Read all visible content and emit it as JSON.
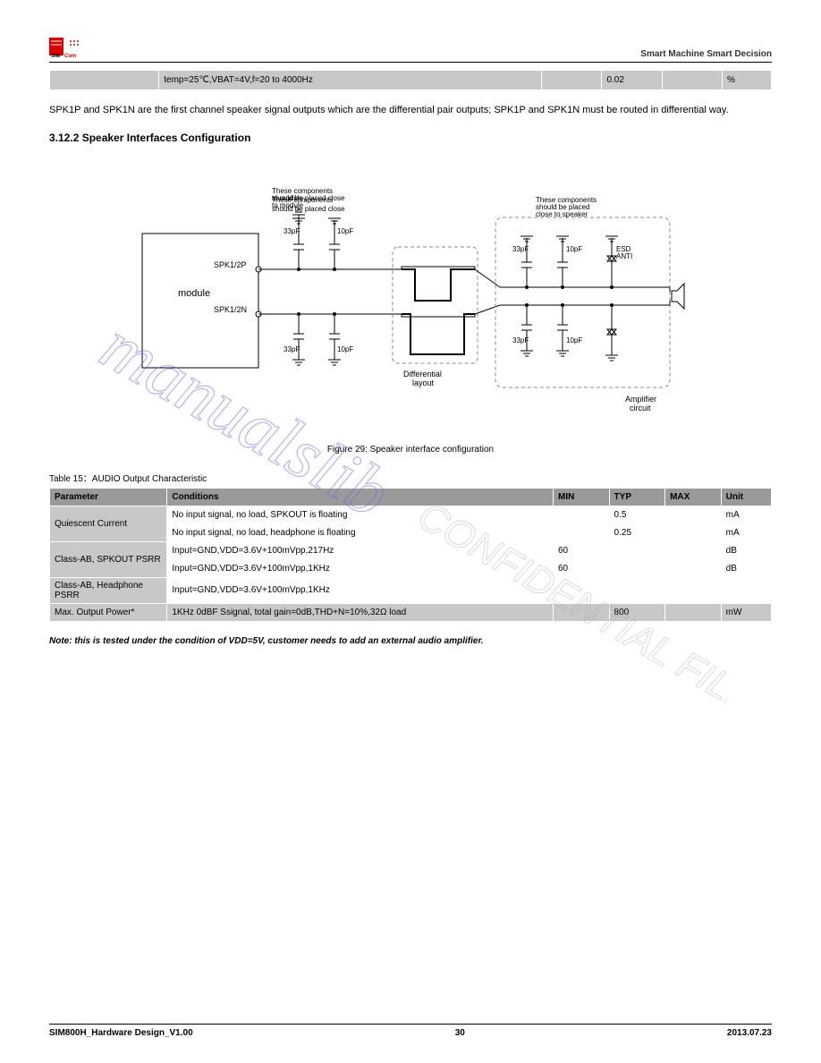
{
  "header": {
    "right": "Smart Machine Smart Decision",
    "sub": ""
  },
  "tbl1_row": {
    "c1": "",
    "c2": "temp=25℃,VBAT=4V,f=20 to 4000Hz",
    "c3": "",
    "c4": "0.02",
    "c5": "",
    "c6": "%"
  },
  "para1": "SPK1P and SPK1N are the first channel speaker signal outputs which are the differential pair outputs; SPK1P and SPK1N must be routed in differential way.",
  "h3": "3.12.2 Speaker Interfaces Configuration",
  "figure": {
    "module_label": "module",
    "pin1": "SPK1/2P",
    "pin2": "SPK1/2N",
    "cap_tl": "33pF",
    "cap_tr": "10pF",
    "cap_bl": "33pF",
    "cap_br": "10pF",
    "diff_label": "Differential\nlayout",
    "note1": "These components\nshould be placed close\nto module",
    "note2": "These components\nshould be placed\nclose to speaker",
    "r_c1t": "33pF",
    "r_c1b": "33pF",
    "r_c2t": "10pF",
    "r_c2b": "10pF",
    "esd": "ESD\nANTI",
    "amp": "Amplifier\ncircuit",
    "box_color": "#7b7bff"
  },
  "figcap": "Figure 29: Speaker interface configuration",
  "tblcap": "Table 15：AUDIO Output Characteristic",
  "tbl2": {
    "head": [
      "Parameter",
      "Conditions",
      "MIN",
      "TYP",
      "MAX",
      "Unit"
    ],
    "rows": [
      [
        "Quiescent Current",
        "No input signal, no load, SPKOUT is floating",
        "",
        "0.5",
        "",
        "mA"
      ],
      [
        "",
        "No input signal, no load, headphone is floating",
        "",
        "0.25",
        "",
        "mA"
      ],
      [
        "Class-AB, SPKOUT PSRR",
        "Input=GND,VDD=3.6V+100mVpp,217Hz",
        "60",
        "",
        "",
        "dB"
      ],
      [
        "",
        "Input=GND,VDD=3.6V+100mVpp,1KHz",
        "60",
        "",
        "",
        "dB"
      ],
      [
        "Class-AB, Headphone PSRR",
        "Input=GND,VDD=3.6V+100mVpp,1KHz",
        "",
        "",
        "",
        ""
      ],
      [
        "Max. Output Power*",
        "1KHz 0dBF Ssignal, total gain=0dB,THD+N=10%,32Ω load",
        "",
        "800",
        "",
        "mW"
      ]
    ],
    "shade": [
      1,
      1,
      0,
      1,
      1,
      0,
      1
    ]
  },
  "note": "Note: this is tested under the condition of VDD=5V, customer needs to add an external audio amplifier.",
  "footer": {
    "l": "SIM800H_Hardware Design_V1.00",
    "c": "30",
    "r": "2013.07.23"
  },
  "colors": {
    "gray": "#c8c8c8",
    "darkgray": "#9a9a9a"
  }
}
